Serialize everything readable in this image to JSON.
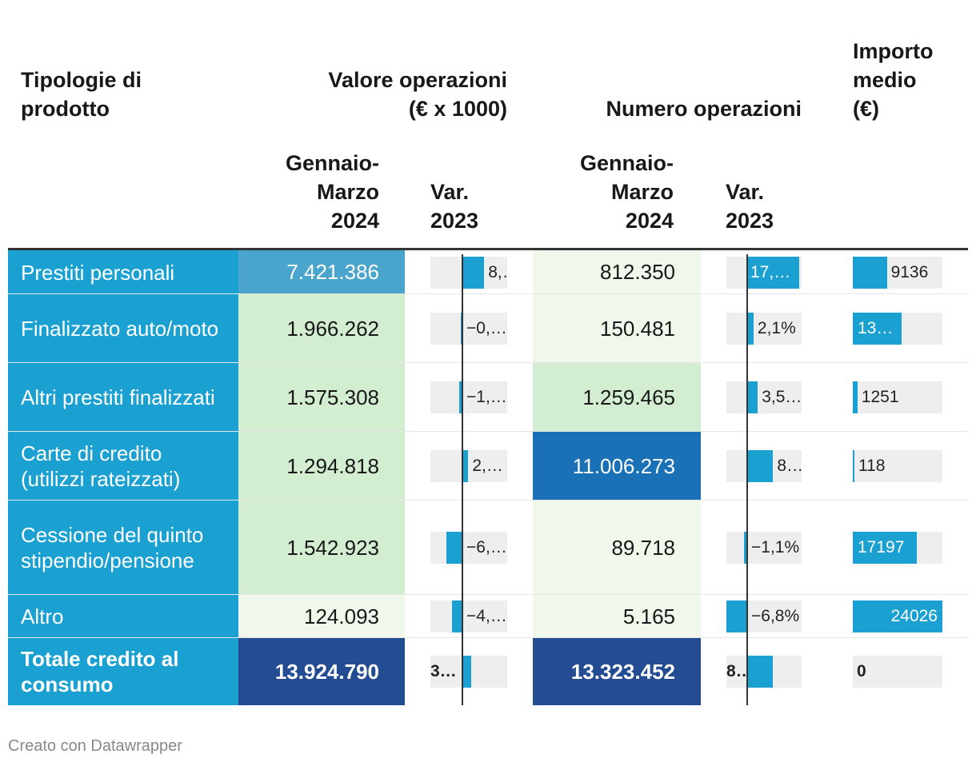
{
  "headers": {
    "tipologie": [
      "Tipologie di",
      "prodotto"
    ],
    "valore": [
      "Valore operazioni",
      "(€ x 1000)"
    ],
    "numero": "Numero operazioni",
    "importo": [
      "Importo",
      "medio",
      "(€)"
    ],
    "period_v": [
      "Gennaio-",
      "Marzo",
      "2024"
    ],
    "var_v": [
      "Var.",
      "2023"
    ],
    "period_n": [
      "Gennaio-",
      "Marzo",
      "2024"
    ],
    "var_n": [
      "Var.",
      "2023"
    ]
  },
  "colors": {
    "label_bg": "#1aa0d1",
    "bar": "#1aa0d1",
    "bar_bg": "#eeeeee",
    "scale_lightest": "#eff8ea",
    "scale_light": "#d3edd1",
    "scale_mid": "#4aa5cc",
    "scale_dark": "#1a71b5",
    "scale_darkest": "#234c93"
  },
  "chart_data": {
    "type": "table",
    "title": "",
    "columns": [
      "Tipologie di prodotto",
      "Valore operazioni (€ x 1000) Gennaio-Marzo 2024",
      "Valore operazioni Var. 2023",
      "Numero operazioni Gennaio-Marzo 2024",
      "Numero operazioni Var. 2023",
      "Importo medio (€)"
    ],
    "rows": [
      {
        "label": "Prestiti personali",
        "valore": "7.421.386",
        "valore_num": 7421386,
        "var_valore": 8.5,
        "var_valore_label": "8,…",
        "numero": "812.350",
        "numero_num": 812350,
        "var_numero": 17.2,
        "var_numero_label": "17,…",
        "importo": 9136,
        "importo_label": "9136",
        "bold": false
      },
      {
        "label": "Finalizzato auto/moto",
        "valore": "1.966.262",
        "valore_num": 1966262,
        "var_valore": -0.4,
        "var_valore_label": "−0,…",
        "numero": "150.481",
        "numero_num": 150481,
        "var_numero": 2.1,
        "var_numero_label": "2,1%",
        "importo": 13066,
        "importo_label": "13…",
        "bold": false
      },
      {
        "label": "Altri prestiti finalizzati",
        "valore": "1.575.308",
        "valore_num": 1575308,
        "var_valore": -1.2,
        "var_valore_label": "−1,…",
        "numero": "1.259.465",
        "numero_num": 1259465,
        "var_numero": 3.5,
        "var_numero_label": "3,5…",
        "importo": 1251,
        "importo_label": "1251",
        "bold": false
      },
      {
        "label": "Carte di credito (utilizzi rateizzati)",
        "valore": "1.294.818",
        "valore_num": 1294818,
        "var_valore": 2.3,
        "var_valore_label": "2,…",
        "numero": "11.006.273",
        "numero_num": 11006273,
        "var_numero": 8.6,
        "var_numero_label": "8…",
        "importo": 118,
        "importo_label": "118",
        "bold": false
      },
      {
        "label": "Cessione del quinto stipendio/pensione",
        "valore": "1.542.923",
        "valore_num": 1542923,
        "var_valore": -6.1,
        "var_valore_label": "−6,…",
        "numero": "89.718",
        "numero_num": 89718,
        "var_numero": -1.1,
        "var_numero_label": "−1,1%",
        "importo": 17197,
        "importo_label": "17197",
        "bold": false
      },
      {
        "label": "Altro",
        "valore": "124.093",
        "valore_num": 124093,
        "var_valore": -4.2,
        "var_valore_label": "−4,…",
        "numero": "5.165",
        "numero_num": 5165,
        "var_numero": -6.8,
        "var_numero_label": "−6,8%",
        "importo": 24026,
        "importo_label": "24026",
        "bold": false
      },
      {
        "label": "Totale credito al consumo",
        "valore": "13.924.790",
        "valore_num": 13924790,
        "var_valore": 3.5,
        "var_valore_label": "3…",
        "numero": "13.323.452",
        "numero_num": 13323452,
        "var_numero": 8.4,
        "var_numero_label": "8…",
        "importo": 0,
        "importo_label": "0",
        "bold": true
      }
    ],
    "var_range": [
      -15,
      17.5
    ],
    "importo_range": [
      0,
      24026
    ]
  },
  "footer": "Creato con Datawrapper"
}
